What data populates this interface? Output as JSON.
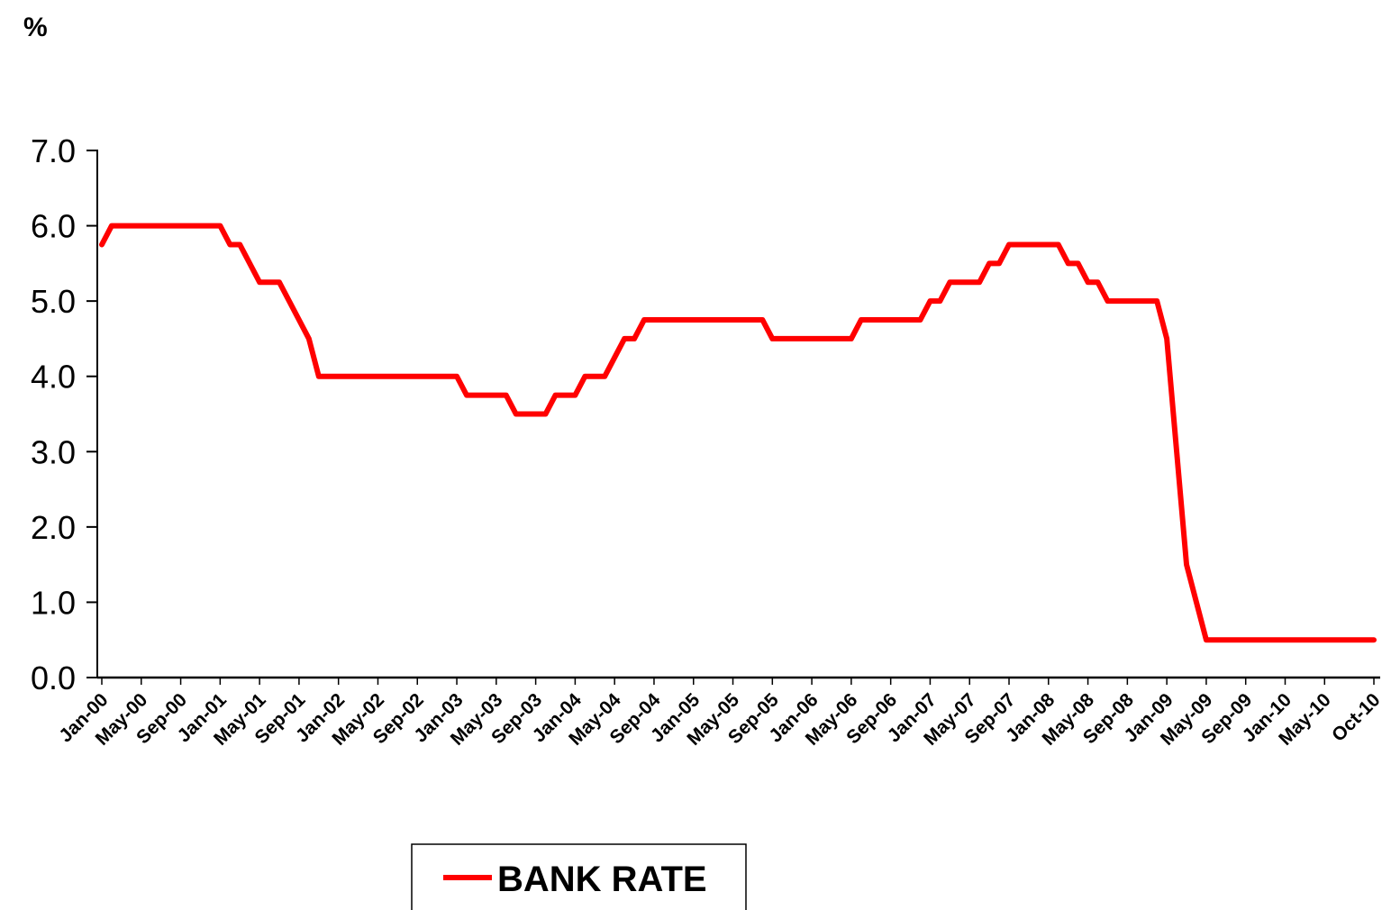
{
  "chart_data": {
    "type": "line",
    "unit_label": "%",
    "ylim": [
      0,
      7
    ],
    "y_ticks": [
      "0.0",
      "1.0",
      "2.0",
      "3.0",
      "4.0",
      "5.0",
      "6.0",
      "7.0"
    ],
    "x_tick_labels": [
      "Jan-00",
      "May-00",
      "Sep-00",
      "Jan-01",
      "May-01",
      "Sep-01",
      "Jan-02",
      "May-02",
      "Sep-02",
      "Jan-03",
      "May-03",
      "Sep-03",
      "Jan-04",
      "May-04",
      "Sep-04",
      "Jan-05",
      "May-05",
      "Sep-05",
      "Jan-06",
      "May-06",
      "Sep-06",
      "Jan-07",
      "May-07",
      "Sep-07",
      "Jan-08",
      "May-08",
      "Sep-08",
      "Jan-09",
      "May-09",
      "Sep-09",
      "Jan-10",
      "May-10",
      "Oct-10"
    ],
    "grid": false,
    "legend_position": "bottom-center",
    "series": [
      {
        "name": "BANK RATE",
        "color": "#ff0000",
        "x": [
          "Jan-00",
          "Feb-00",
          "Mar-00",
          "Apr-00",
          "May-00",
          "Jun-00",
          "Jul-00",
          "Aug-00",
          "Sep-00",
          "Oct-00",
          "Nov-00",
          "Dec-00",
          "Jan-01",
          "Feb-01",
          "Mar-01",
          "Apr-01",
          "May-01",
          "Jun-01",
          "Jul-01",
          "Aug-01",
          "Sep-01",
          "Oct-01",
          "Nov-01",
          "Dec-01",
          "Jan-02",
          "Feb-02",
          "Mar-02",
          "Apr-02",
          "May-02",
          "Jun-02",
          "Jul-02",
          "Aug-02",
          "Sep-02",
          "Oct-02",
          "Nov-02",
          "Dec-02",
          "Jan-03",
          "Feb-03",
          "Mar-03",
          "Apr-03",
          "May-03",
          "Jun-03",
          "Jul-03",
          "Aug-03",
          "Sep-03",
          "Oct-03",
          "Nov-03",
          "Dec-03",
          "Jan-04",
          "Feb-04",
          "Mar-04",
          "Apr-04",
          "May-04",
          "Jun-04",
          "Jul-04",
          "Aug-04",
          "Sep-04",
          "Oct-04",
          "Nov-04",
          "Dec-04",
          "Jan-05",
          "Feb-05",
          "Mar-05",
          "Apr-05",
          "May-05",
          "Jun-05",
          "Jul-05",
          "Aug-05",
          "Sep-05",
          "Oct-05",
          "Nov-05",
          "Dec-05",
          "Jan-06",
          "Feb-06",
          "Mar-06",
          "Apr-06",
          "May-06",
          "Jun-06",
          "Jul-06",
          "Aug-06",
          "Sep-06",
          "Oct-06",
          "Nov-06",
          "Dec-06",
          "Jan-07",
          "Feb-07",
          "Mar-07",
          "Apr-07",
          "May-07",
          "Jun-07",
          "Jul-07",
          "Aug-07",
          "Sep-07",
          "Oct-07",
          "Nov-07",
          "Dec-07",
          "Jan-08",
          "Feb-08",
          "Mar-08",
          "Apr-08",
          "May-08",
          "Jun-08",
          "Jul-08",
          "Aug-08",
          "Sep-08",
          "Oct-08",
          "Nov-08",
          "Dec-08",
          "Jan-09",
          "Feb-09",
          "Mar-09",
          "Apr-09",
          "May-09",
          "Jun-09",
          "Jul-09",
          "Aug-09",
          "Sep-09",
          "Oct-09",
          "Nov-09",
          "Dec-09",
          "Jan-10",
          "Feb-10",
          "Mar-10",
          "Apr-10",
          "May-10",
          "Jun-10",
          "Jul-10",
          "Aug-10",
          "Sep-10",
          "Oct-10"
        ],
        "values": [
          5.75,
          6.0,
          6.0,
          6.0,
          6.0,
          6.0,
          6.0,
          6.0,
          6.0,
          6.0,
          6.0,
          6.0,
          6.0,
          5.75,
          5.75,
          5.5,
          5.25,
          5.25,
          5.25,
          5.0,
          4.75,
          4.5,
          4.0,
          4.0,
          4.0,
          4.0,
          4.0,
          4.0,
          4.0,
          4.0,
          4.0,
          4.0,
          4.0,
          4.0,
          4.0,
          4.0,
          4.0,
          3.75,
          3.75,
          3.75,
          3.75,
          3.75,
          3.5,
          3.5,
          3.5,
          3.5,
          3.75,
          3.75,
          3.75,
          4.0,
          4.0,
          4.0,
          4.25,
          4.5,
          4.5,
          4.75,
          4.75,
          4.75,
          4.75,
          4.75,
          4.75,
          4.75,
          4.75,
          4.75,
          4.75,
          4.75,
          4.75,
          4.75,
          4.5,
          4.5,
          4.5,
          4.5,
          4.5,
          4.5,
          4.5,
          4.5,
          4.5,
          4.75,
          4.75,
          4.75,
          4.75,
          4.75,
          4.75,
          4.75,
          5.0,
          5.0,
          5.25,
          5.25,
          5.25,
          5.25,
          5.5,
          5.5,
          5.75,
          5.75,
          5.75,
          5.75,
          5.75,
          5.75,
          5.5,
          5.5,
          5.25,
          5.25,
          5.0,
          5.0,
          5.0,
          5.0,
          5.0,
          5.0,
          4.5,
          3.0,
          1.5,
          1.0,
          0.5,
          0.5,
          0.5,
          0.5,
          0.5,
          0.5,
          0.5,
          0.5,
          0.5,
          0.5,
          0.5,
          0.5,
          0.5,
          0.5,
          0.5,
          0.5,
          0.5,
          0.5
        ]
      }
    ]
  }
}
